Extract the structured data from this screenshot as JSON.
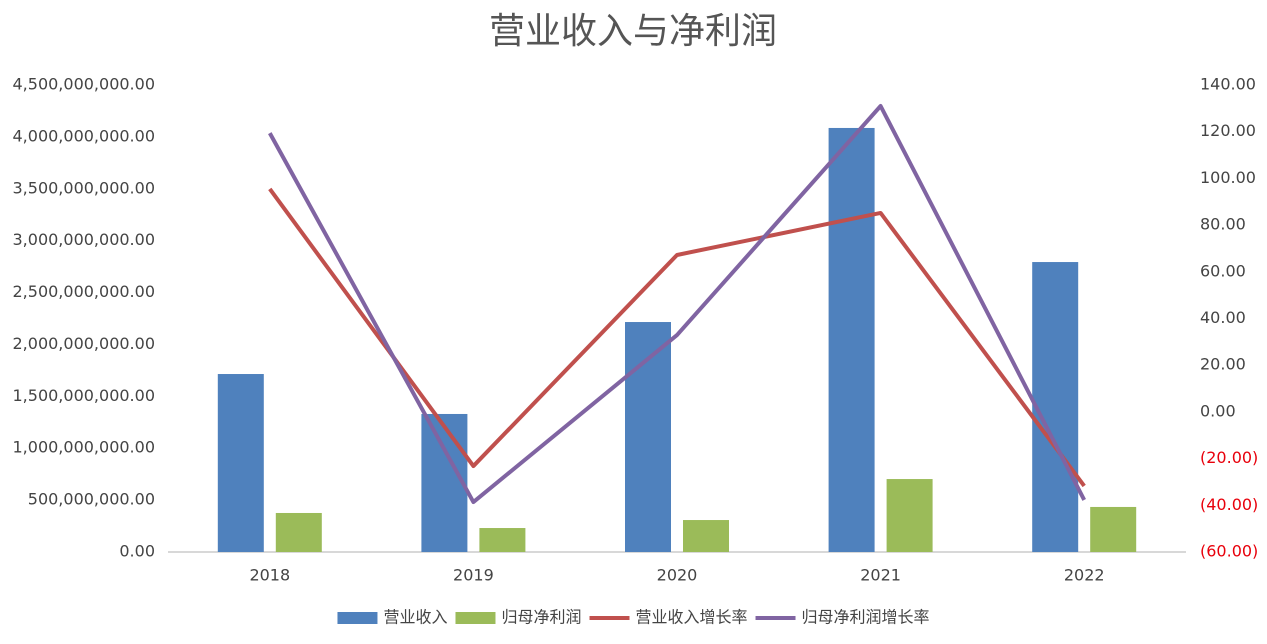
{
  "chart_data": {
    "type": "combo",
    "title": "营业收入与净利润",
    "categories": [
      "2018",
      "2019",
      "2020",
      "2021",
      "2022"
    ],
    "series": [
      {
        "name": "营业收入",
        "type": "bar",
        "axis": "y",
        "color": "#4f81bd",
        "values": [
          1715000000,
          1330000000,
          2216000000,
          4086000000,
          2794000000
        ]
      },
      {
        "name": "归母净利润",
        "type": "bar",
        "axis": "y",
        "color": "#9bbb59",
        "values": [
          376000000,
          231000000,
          308000000,
          703000000,
          434000000
        ]
      },
      {
        "name": "营业收入增长率",
        "type": "line",
        "axis": "y2",
        "color": "#c0504d",
        "values": [
          95.5,
          -23.2,
          67.2,
          85.2,
          -31.7
        ]
      },
      {
        "name": "归母净利润增长率",
        "type": "line",
        "axis": "y2",
        "color": "#8064a2",
        "values": [
          119.4,
          -38.6,
          32.9,
          131.0,
          -37.7
        ]
      }
    ],
    "ylim": [
      0,
      4500000000
    ],
    "yticks": [
      {
        "value": 0,
        "label": "0.00"
      },
      {
        "value": 500000000,
        "label": "500,000,000.00"
      },
      {
        "value": 1000000000,
        "label": "1,000,000,000.00"
      },
      {
        "value": 1500000000,
        "label": "1,500,000,000.00"
      },
      {
        "value": 2000000000,
        "label": "2,000,000,000.00"
      },
      {
        "value": 2500000000,
        "label": "2,500,000,000.00"
      },
      {
        "value": 3000000000,
        "label": "3,000,000,000.00"
      },
      {
        "value": 3500000000,
        "label": "3,500,000,000.00"
      },
      {
        "value": 4000000000,
        "label": "4,000,000,000.00"
      },
      {
        "value": 4500000000,
        "label": "4,500,000,000.00"
      }
    ],
    "y2lim": [
      -60,
      140
    ],
    "y2ticks": [
      {
        "value": -60,
        "label": "(60.00)"
      },
      {
        "value": -40,
        "label": "(40.00)"
      },
      {
        "value": -20,
        "label": "(20.00)"
      },
      {
        "value": 0,
        "label": "0.00"
      },
      {
        "value": 20,
        "label": "20.00"
      },
      {
        "value": 40,
        "label": "40.00"
      },
      {
        "value": 60,
        "label": "60.00"
      },
      {
        "value": 80,
        "label": "80.00"
      },
      {
        "value": 100,
        "label": "100.00"
      },
      {
        "value": 120,
        "label": "120.00"
      },
      {
        "value": 140,
        "label": "140.00"
      }
    ],
    "y2_negative_label_color": "#e8000b",
    "grid": false,
    "legend": "bottom"
  }
}
